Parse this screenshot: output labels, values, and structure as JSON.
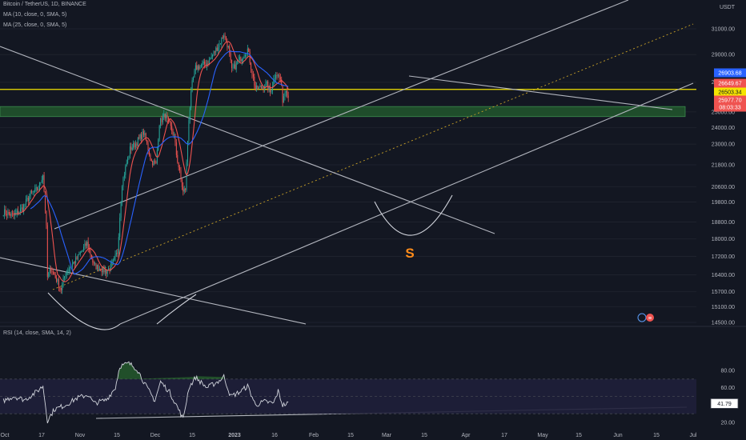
{
  "header": {
    "symbol_line": "Bitcoin / TetherUS, 1D, BINANCE",
    "ma10_line": "MA (10, close, 0, SMA, 5)",
    "ma25_line": "MA (25, close, 0, SMA, 5)",
    "currency": "USDT"
  },
  "rsi_panel": {
    "label": "RSI (14, close, SMA, 14, 2)"
  },
  "annotation": {
    "pattern_letter": "S"
  },
  "colors": {
    "background": "#131722",
    "up_candle": "#26a69a",
    "down_candle": "#ef5350",
    "ma10": "#ef5350",
    "ma25": "#2962ff",
    "support_zone": "#1f4d2b",
    "horizontal_level": "#f5e400",
    "annotation": "#ff8c1a",
    "rsi_line": "#d1d4dc",
    "rsi_band": "#1f1f3a"
  },
  "chart_data": [
    {
      "type": "candlestick",
      "title": "Bitcoin / TetherUS, 1D, BINANCE",
      "y_axis": {
        "ticks": [
          31000,
          29000,
          27000,
          25000,
          24000,
          23000,
          21800,
          20600,
          19800,
          18800,
          18000,
          17200,
          16400,
          15700,
          15100,
          14500
        ],
        "scale": "log",
        "unit": "USDT"
      },
      "x_axis": {
        "ticks": [
          "Oct",
          "17",
          "Nov",
          "15",
          "Dec",
          "15",
          "2023",
          "16",
          "Feb",
          "15",
          "Mar",
          "15",
          "Apr",
          "17",
          "May",
          "15",
          "Jun",
          "15",
          "Jul"
        ]
      },
      "price_markers": [
        {
          "value": "26903.68",
          "color": "#2962ff"
        },
        {
          "value": "26649.67",
          "color": "#ef5350"
        },
        {
          "value": "26503.34",
          "color": "#f5e400"
        },
        {
          "value": "25977.70",
          "color": "#ef5350"
        },
        {
          "value": "08:03:33",
          "color": "#ef5350"
        }
      ],
      "key_levels": {
        "horizontal_resistance": 26500,
        "support_zone": [
          24700,
          25350
        ]
      },
      "price_path_anchors": [
        [
          "2022-10-01",
          19300
        ],
        [
          "2022-10-10",
          19100
        ],
        [
          "2022-10-18",
          19500
        ],
        [
          "2022-10-25",
          20200
        ],
        [
          "2022-11-01",
          20500
        ],
        [
          "2022-11-05",
          21300
        ],
        [
          "2022-11-08",
          18500
        ],
        [
          "2022-11-09",
          16300
        ],
        [
          "2022-11-12",
          16700
        ],
        [
          "2022-11-21",
          15800
        ],
        [
          "2022-11-25",
          16500
        ],
        [
          "2022-12-05",
          17100
        ],
        [
          "2022-12-14",
          17800
        ],
        [
          "2022-12-20",
          16800
        ],
        [
          "2022-12-31",
          16550
        ],
        [
          "2023-01-05",
          16800
        ],
        [
          "2023-01-10",
          17400
        ],
        [
          "2023-01-14",
          20800
        ],
        [
          "2023-01-21",
          22700
        ],
        [
          "2023-01-27",
          23100
        ],
        [
          "2023-02-02",
          23700
        ],
        [
          "2023-02-09",
          22000
        ],
        [
          "2023-02-13",
          21800
        ],
        [
          "2023-02-16",
          24300
        ],
        [
          "2023-02-21",
          24800
        ],
        [
          "2023-03-01",
          23500
        ],
        [
          "2023-03-03",
          22400
        ],
        [
          "2023-03-09",
          20300
        ],
        [
          "2023-03-11",
          20500
        ],
        [
          "2023-03-14",
          24600
        ],
        [
          "2023-03-17",
          26900
        ],
        [
          "2023-03-20",
          28000
        ],
        [
          "2023-03-31",
          28400
        ],
        [
          "2023-04-10",
          29800
        ],
        [
          "2023-04-14",
          30600
        ],
        [
          "2023-04-18",
          29500
        ],
        [
          "2023-04-21",
          27800
        ],
        [
          "2023-04-26",
          28400
        ],
        [
          "2023-05-05",
          29400
        ],
        [
          "2023-05-09",
          27700
        ],
        [
          "2023-05-12",
          26500
        ],
        [
          "2023-05-22",
          26800
        ],
        [
          "2023-05-25",
          26300
        ],
        [
          "2023-05-30",
          27700
        ],
        [
          "2023-06-03",
          27200
        ],
        [
          "2023-06-05",
          25800
        ],
        [
          "2023-06-08",
          26650
        ],
        [
          "2023-06-10",
          25977
        ]
      ],
      "series": [
        {
          "name": "MA (10, close, 0, SMA, 5)"
        },
        {
          "name": "MA (25, close, 0, SMA, 5)"
        }
      ]
    },
    {
      "type": "line",
      "title": "RSI (14, close, SMA, 14, 2)",
      "y_axis": {
        "ticks": [
          80.0,
          60.0,
          40.0,
          20.0
        ],
        "range": [
          20,
          90
        ]
      },
      "overbought": 70,
      "oversold": 30,
      "current_value": "41.79",
      "rsi_path_anchors": [
        [
          "2022-10-01",
          45
        ],
        [
          "2022-10-10",
          50
        ],
        [
          "2022-10-20",
          46
        ],
        [
          "2022-10-30",
          55
        ],
        [
          "2022-11-05",
          62
        ],
        [
          "2022-11-09",
          22
        ],
        [
          "2022-11-15",
          35
        ],
        [
          "2022-11-25",
          40
        ],
        [
          "2022-12-05",
          48
        ],
        [
          "2022-12-15",
          52
        ],
        [
          "2022-12-20",
          42
        ],
        [
          "2022-12-31",
          46
        ],
        [
          "2023-01-08",
          60
        ],
        [
          "2023-01-12",
          85
        ],
        [
          "2023-01-20",
          88
        ],
        [
          "2023-01-27",
          82
        ],
        [
          "2023-02-05",
          60
        ],
        [
          "2023-02-12",
          45
        ],
        [
          "2023-02-17",
          67
        ],
        [
          "2023-02-25",
          55
        ],
        [
          "2023-03-03",
          40
        ],
        [
          "2023-03-09",
          24
        ],
        [
          "2023-03-14",
          60
        ],
        [
          "2023-03-20",
          72
        ],
        [
          "2023-03-30",
          60
        ],
        [
          "2023-04-10",
          68
        ],
        [
          "2023-04-14",
          73
        ],
        [
          "2023-04-20",
          50
        ],
        [
          "2023-04-28",
          55
        ],
        [
          "2023-05-05",
          62
        ],
        [
          "2023-05-12",
          40
        ],
        [
          "2023-05-20",
          44
        ],
        [
          "2023-05-28",
          42
        ],
        [
          "2023-06-01",
          56
        ],
        [
          "2023-06-05",
          40
        ],
        [
          "2023-06-10",
          42
        ]
      ]
    }
  ]
}
